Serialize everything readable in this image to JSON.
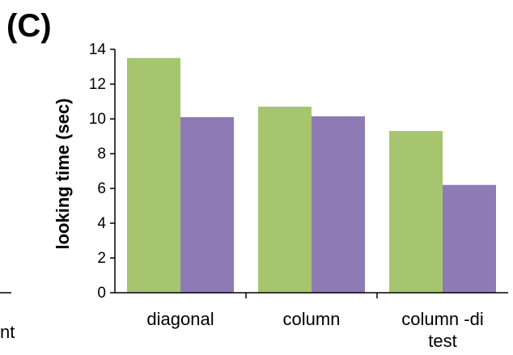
{
  "panel_label": "(C)",
  "left_fragment_text": "nt",
  "chart_data": {
    "type": "bar",
    "title": "",
    "xlabel": "",
    "ylabel": "looking time (sec)",
    "ylim": [
      0,
      14
    ],
    "yticks": [
      0,
      2,
      4,
      6,
      8,
      10,
      12,
      14
    ],
    "categories": [
      "diagonal",
      "column",
      "column -di\ntest"
    ],
    "series": [
      {
        "color": "#a6c56e",
        "values": [
          13.5,
          10.7,
          9.3
        ]
      },
      {
        "color": "#8e7bb6",
        "values": [
          10.1,
          10.15,
          6.2
        ]
      }
    ],
    "grid": false,
    "legend": "none"
  }
}
